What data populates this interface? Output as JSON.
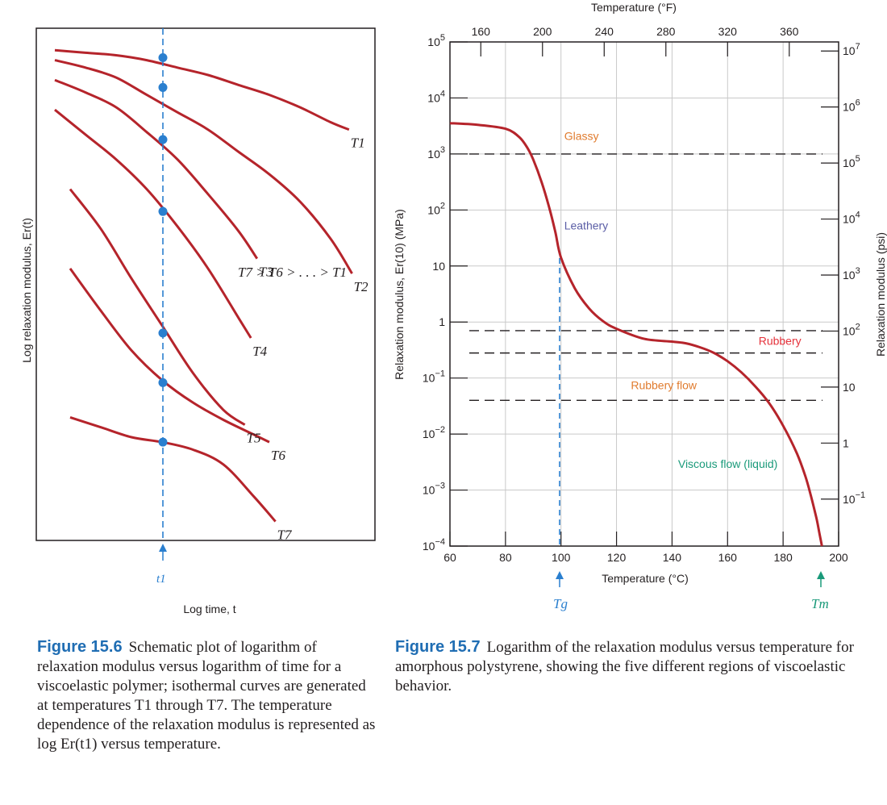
{
  "chart_data": [
    {
      "type": "line",
      "xlabel": "Log time, t",
      "ylabel": "Log relaxation modulus, Er(t)",
      "marker_label": "t1",
      "annotation": "T7 > T6 > . . . > T1",
      "series": [
        {
          "name": "T1",
          "x": [
            0.0,
            0.1,
            0.2,
            0.3,
            0.4,
            0.5,
            0.6,
            0.7,
            0.8,
            0.9,
            0.96
          ],
          "y": [
            0.98,
            0.975,
            0.97,
            0.96,
            0.945,
            0.93,
            0.91,
            0.89,
            0.865,
            0.835,
            0.82
          ]
        },
        {
          "name": "T2",
          "x": [
            0.0,
            0.1,
            0.2,
            0.3,
            0.4,
            0.5,
            0.6,
            0.7,
            0.8,
            0.9,
            0.97
          ],
          "y": [
            0.96,
            0.945,
            0.925,
            0.89,
            0.855,
            0.82,
            0.775,
            0.73,
            0.675,
            0.6,
            0.53
          ]
        },
        {
          "name": "T3",
          "x": [
            0.0,
            0.1,
            0.2,
            0.3,
            0.4,
            0.5,
            0.6,
            0.66
          ],
          "y": [
            0.92,
            0.895,
            0.865,
            0.815,
            0.76,
            0.69,
            0.615,
            0.56
          ]
        },
        {
          "name": "T4",
          "x": [
            0.0,
            0.1,
            0.2,
            0.3,
            0.4,
            0.5,
            0.6,
            0.64
          ],
          "y": [
            0.86,
            0.81,
            0.76,
            0.7,
            0.625,
            0.54,
            0.44,
            0.4
          ]
        },
        {
          "name": "T5",
          "x": [
            0.05,
            0.15,
            0.25,
            0.35,
            0.45,
            0.55,
            0.62
          ],
          "y": [
            0.7,
            0.62,
            0.52,
            0.425,
            0.33,
            0.255,
            0.225
          ]
        },
        {
          "name": "T6",
          "x": [
            0.05,
            0.15,
            0.25,
            0.35,
            0.45,
            0.55,
            0.65,
            0.7
          ],
          "y": [
            0.54,
            0.455,
            0.375,
            0.315,
            0.27,
            0.235,
            0.205,
            0.19
          ]
        },
        {
          "name": "T7",
          "x": [
            0.05,
            0.15,
            0.25,
            0.35,
            0.45,
            0.55,
            0.65,
            0.72
          ],
          "y": [
            0.24,
            0.22,
            0.2,
            0.19,
            0.175,
            0.145,
            0.08,
            0.03
          ]
        }
      ],
      "markers": [
        {
          "series": "T1",
          "y": 0.965
        },
        {
          "series": "T2",
          "y": 0.905
        },
        {
          "series": "T3",
          "y": 0.8
        },
        {
          "series": "T4",
          "y": 0.655
        },
        {
          "series": "T5",
          "y": 0.41
        },
        {
          "series": "T6",
          "y": 0.31
        },
        {
          "series": "T7",
          "y": 0.19
        }
      ]
    },
    {
      "type": "line",
      "xlabel": "Temperature (°C)",
      "ylabel": "Relaxation modulus, Er(10) (MPa)",
      "x2label": "Temperature (°F)",
      "y2label": "Relaxation modulus (psi)",
      "xlim": [
        60,
        200
      ],
      "ylim_log10": [
        -4,
        5
      ],
      "x_ticks": [
        "60",
        "80",
        "100",
        "120",
        "140",
        "160",
        "180",
        "200"
      ],
      "x2_ticks": [
        "160",
        "200",
        "240",
        "280",
        "320",
        "360"
      ],
      "y_ticks": [
        "10^-4",
        "10^-3",
        "10^-2",
        "10^-1",
        "1",
        "10",
        "10^2",
        "10^3",
        "10^4",
        "10^5"
      ],
      "y2_ticks": [
        "10^-1",
        "1",
        "10",
        "10^2",
        "10^3",
        "10^4",
        "10^5",
        "10^6",
        "10^7"
      ],
      "grid": true,
      "regions": [
        "Glassy",
        "Leathery",
        "Rubbery",
        "Rubbery flow",
        "Viscous flow (liquid)"
      ],
      "region_colors": [
        "#e07b2e",
        "#5b5ea6",
        "#e5323b",
        "#e07b2e",
        "#1a9a7a"
      ],
      "dashed_levels_MPa": [
        1000,
        0.7,
        0.28,
        0.04
      ],
      "markers": [
        {
          "label": "Tg",
          "x": 100
        },
        {
          "label": "Tm",
          "x": 194
        }
      ],
      "series": [
        {
          "name": "",
          "x": [
            60,
            70,
            80,
            85,
            88,
            90,
            93,
            96,
            98,
            100,
            105,
            110,
            115,
            120,
            130,
            140,
            145,
            150,
            155,
            160,
            165,
            170,
            175,
            180,
            185,
            188,
            190,
            192,
            193,
            194
          ],
          "y_log10": [
            3.55,
            3.52,
            3.45,
            3.3,
            3.1,
            2.9,
            2.5,
            2.0,
            1.6,
            1.15,
            0.6,
            0.25,
            0.02,
            -0.12,
            -0.3,
            -0.35,
            -0.38,
            -0.45,
            -0.55,
            -0.7,
            -0.9,
            -1.15,
            -1.45,
            -1.85,
            -2.35,
            -2.75,
            -3.1,
            -3.5,
            -3.75,
            -4.0
          ]
        }
      ]
    }
  ],
  "captions": [
    {
      "label": "Figure 15.6",
      "text": "Schematic plot of logarithm of relaxation modulus versus logarithm of time for a viscoelastic polymer; isothermal curves are generated at temperatures T1 through T7. The temperature dependence of the relaxation modulus is represented as log Er(t1) versus temperature."
    },
    {
      "label": "Figure 15.7",
      "text": "Logarithm of the relaxation modulus versus temperature for amorphous polystyrene, showing the five different regions of viscoelastic behavior."
    }
  ],
  "colors": {
    "curve": "#b5242b",
    "marker": "#2a7fcf",
    "caption_label": "#1f6db3"
  }
}
